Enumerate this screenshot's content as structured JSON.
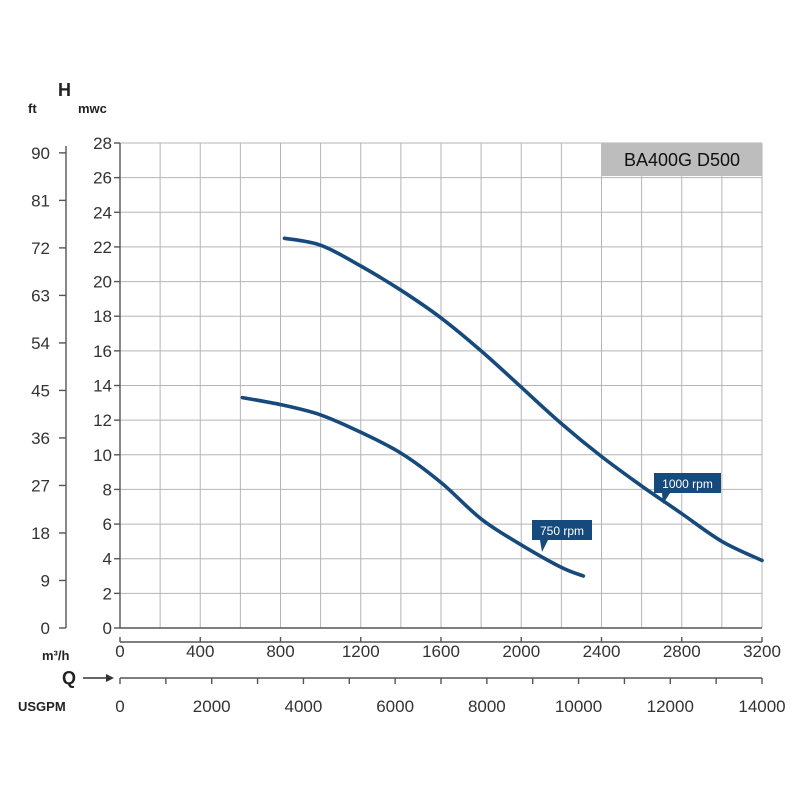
{
  "chart_data": {
    "type": "line",
    "title": "BA400G D500",
    "title_box_color": "#bdbdbd",
    "line_color": "#174a7c",
    "label_color": "#174a7c",
    "grid": true,
    "xlabel_symbol": "Q",
    "ylabel_symbol": "H",
    "y_primary": {
      "unit": "mwc",
      "range": [
        0,
        28
      ],
      "ticks": [
        "0",
        "2",
        "4",
        "6",
        "8",
        "10",
        "12",
        "14",
        "16",
        "18",
        "20",
        "22",
        "24",
        "26",
        "28"
      ]
    },
    "y_secondary": {
      "unit": "ft",
      "ticks": [
        "0",
        "9",
        "18",
        "27",
        "36",
        "45",
        "54",
        "63",
        "72",
        "81",
        "90"
      ]
    },
    "x_primary": {
      "unit": "m³/h",
      "range": [
        0,
        3200
      ],
      "ticks": [
        "0",
        "400",
        "800",
        "1200",
        "1600",
        "2000",
        "2400",
        "2800",
        "3200"
      ]
    },
    "x_secondary": {
      "unit": "USGPM",
      "range": [
        0,
        14000
      ],
      "ticks": [
        "0",
        "2000",
        "4000",
        "6000",
        "8000",
        "10000",
        "12000",
        "14000"
      ]
    },
    "series": [
      {
        "name": "1000 rpm",
        "points": [
          [
            820,
            22.5
          ],
          [
            1000,
            22.1
          ],
          [
            1200,
            20.9
          ],
          [
            1400,
            19.5
          ],
          [
            1600,
            17.9
          ],
          [
            1800,
            16.0
          ],
          [
            2000,
            13.9
          ],
          [
            2200,
            11.8
          ],
          [
            2400,
            9.9
          ],
          [
            2600,
            8.2
          ],
          [
            2800,
            6.6
          ],
          [
            3000,
            5.0
          ],
          [
            3200,
            3.9
          ]
        ]
      },
      {
        "name": "750 rpm",
        "points": [
          [
            610,
            13.3
          ],
          [
            800,
            12.9
          ],
          [
            1000,
            12.3
          ],
          [
            1200,
            11.3
          ],
          [
            1400,
            10.1
          ],
          [
            1600,
            8.4
          ],
          [
            1800,
            6.3
          ],
          [
            2000,
            4.8
          ],
          [
            2200,
            3.5
          ],
          [
            2310,
            3.0
          ]
        ]
      }
    ]
  }
}
